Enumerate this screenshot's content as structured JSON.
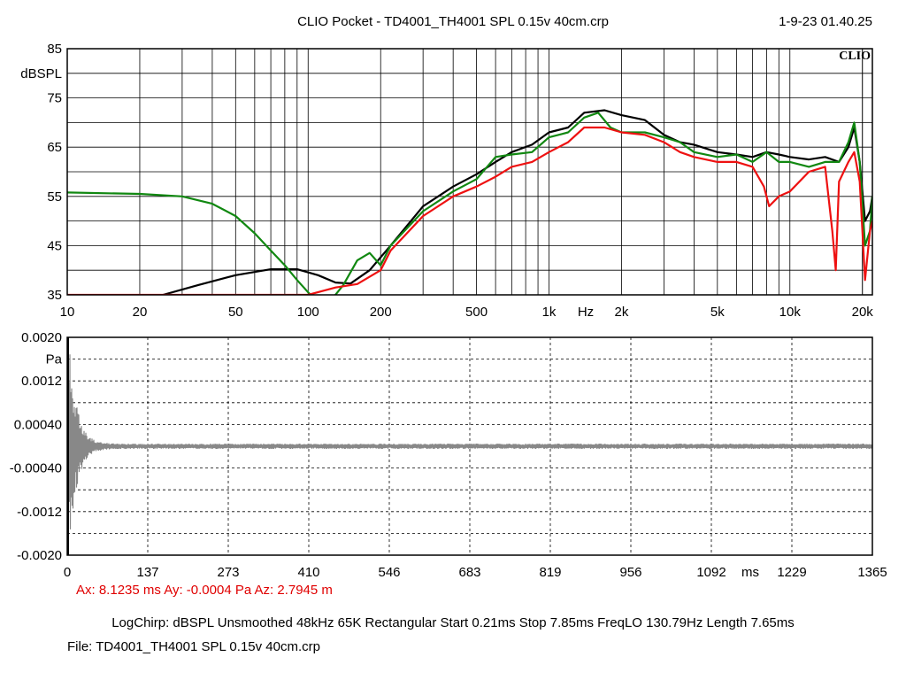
{
  "title": "CLIO Pocket - TD4001_TH4001 SPL 0.15v 40cm.crp",
  "datetime": "1-9-23 01.40.25",
  "brand": "CLIO",
  "cursor_readout": "Ax: 8.1235 ms   Ay: -0.0004 Pa   Az: 2.7945 m",
  "params": "LogChirp:  dBSPL   Unsmoothed   48kHz   65K   Rectangular   Start 0.21ms    Stop 7.85ms    FreqLO 130.79Hz    Length 7.65ms",
  "file": "File: TD4001_TH4001 SPL 0.15v 40cm.crp",
  "colors": {
    "black": "#000000",
    "green": "#118811",
    "red": "#ee1111",
    "impulse": "#888888"
  },
  "chart_data": [
    {
      "type": "line",
      "x_scale": "log",
      "xlim": [
        10,
        22000
      ],
      "ylim": [
        35,
        85
      ],
      "ylabel": "dBSPL",
      "xlabel": "Hz",
      "y_ticks": [
        "85",
        "75",
        "65",
        "55",
        "45",
        "35"
      ],
      "x_ticks": [
        {
          "v": 10,
          "label": "10"
        },
        {
          "v": 20,
          "label": "20"
        },
        {
          "v": 50,
          "label": "50"
        },
        {
          "v": 100,
          "label": "100"
        },
        {
          "v": 200,
          "label": "200"
        },
        {
          "v": 500,
          "label": "500"
        },
        {
          "v": 1000,
          "label": "1k"
        },
        {
          "v": 2000,
          "label": "2k"
        },
        {
          "v": 5000,
          "label": "5k"
        },
        {
          "v": 10000,
          "label": "10k"
        },
        {
          "v": 20000,
          "label": "20k"
        }
      ],
      "series": [
        {
          "color": "black",
          "points": [
            [
              25,
              35
            ],
            [
              35,
              37
            ],
            [
              50,
              39
            ],
            [
              70,
              40.2
            ],
            [
              90,
              40.2
            ],
            [
              110,
              39
            ],
            [
              130,
              37.5
            ],
            [
              150,
              37.3
            ],
            [
              180,
              40
            ],
            [
              220,
              45
            ],
            [
              300,
              53
            ],
            [
              400,
              57
            ],
            [
              500,
              59.5
            ],
            [
              600,
              62
            ],
            [
              700,
              64
            ],
            [
              850,
              65.5
            ],
            [
              1000,
              68
            ],
            [
              1200,
              69
            ],
            [
              1400,
              72
            ],
            [
              1700,
              72.5
            ],
            [
              2000,
              71.5
            ],
            [
              2500,
              70.5
            ],
            [
              3000,
              67.5
            ],
            [
              3500,
              66
            ],
            [
              4000,
              65.5
            ],
            [
              5000,
              64
            ],
            [
              6000,
              63.5
            ],
            [
              7000,
              63
            ],
            [
              8000,
              64
            ],
            [
              9000,
              63.5
            ],
            [
              10000,
              63
            ],
            [
              12000,
              62.5
            ],
            [
              14000,
              63
            ],
            [
              16000,
              62
            ],
            [
              17500,
              65
            ],
            [
              18500,
              69
            ],
            [
              19500,
              62
            ],
            [
              20500,
              50
            ],
            [
              21500,
              52
            ],
            [
              22000,
              55
            ]
          ]
        },
        {
          "color": "green",
          "points": [
            [
              10,
              55.8
            ],
            [
              20,
              55.5
            ],
            [
              30,
              55
            ],
            [
              40,
              53.5
            ],
            [
              50,
              51
            ],
            [
              60,
              47.5
            ],
            [
              70,
              44
            ],
            [
              80,
              41
            ],
            [
              90,
              38
            ],
            [
              100,
              35.5
            ],
            [
              105,
              34.5
            ],
            [
              125,
              34
            ],
            [
              140,
              37
            ],
            [
              160,
              42
            ],
            [
              180,
              43.5
            ],
            [
              200,
              41
            ],
            [
              220,
              45
            ],
            [
              300,
              52
            ],
            [
              400,
              56
            ],
            [
              500,
              58.5
            ],
            [
              600,
              63
            ],
            [
              700,
              63.5
            ],
            [
              850,
              64
            ],
            [
              1000,
              67
            ],
            [
              1200,
              68
            ],
            [
              1400,
              71
            ],
            [
              1600,
              72
            ],
            [
              1800,
              69
            ],
            [
              2000,
              68
            ],
            [
              2500,
              68
            ],
            [
              3000,
              67
            ],
            [
              3500,
              66
            ],
            [
              4000,
              64
            ],
            [
              5000,
              63
            ],
            [
              6000,
              63.5
            ],
            [
              7000,
              62
            ],
            [
              8000,
              64
            ],
            [
              9000,
              62
            ],
            [
              10000,
              62
            ],
            [
              12000,
              61
            ],
            [
              14000,
              62
            ],
            [
              16000,
              62
            ],
            [
              17500,
              66
            ],
            [
              18500,
              70
            ],
            [
              19500,
              62
            ],
            [
              20500,
              45
            ],
            [
              21500,
              48
            ],
            [
              22000,
              55
            ]
          ]
        },
        {
          "color": "red",
          "points": [
            [
              10,
              35
            ],
            [
              100,
              35
            ],
            [
              130,
              36.5
            ],
            [
              160,
              37.2
            ],
            [
              200,
              40
            ],
            [
              220,
              44
            ],
            [
              300,
              51
            ],
            [
              400,
              55
            ],
            [
              500,
              57
            ],
            [
              600,
              59
            ],
            [
              700,
              61
            ],
            [
              850,
              62
            ],
            [
              1000,
              64
            ],
            [
              1200,
              66
            ],
            [
              1400,
              69
            ],
            [
              1700,
              69
            ],
            [
              2000,
              68
            ],
            [
              2500,
              67.5
            ],
            [
              3000,
              66
            ],
            [
              3500,
              64
            ],
            [
              4000,
              63
            ],
            [
              5000,
              62
            ],
            [
              6000,
              62
            ],
            [
              7000,
              61
            ],
            [
              7800,
              57
            ],
            [
              8200,
              53
            ],
            [
              9000,
              55
            ],
            [
              10000,
              56
            ],
            [
              12000,
              60
            ],
            [
              14000,
              61
            ],
            [
              15000,
              48
            ],
            [
              15500,
              40
            ],
            [
              16000,
              58
            ],
            [
              17500,
              62
            ],
            [
              18500,
              64
            ],
            [
              19500,
              58
            ],
            [
              20500,
              38
            ],
            [
              21500,
              48
            ],
            [
              22000,
              50
            ]
          ]
        }
      ]
    },
    {
      "type": "line",
      "xlim": [
        0,
        1365
      ],
      "ylim": [
        -0.002,
        0.002
      ],
      "ylabel": "Pa",
      "xlabel": "ms",
      "y_ticks": [
        {
          "v": 0.002,
          "label": "0.0020"
        },
        {
          "v": 0.0012,
          "label": "0.0012"
        },
        {
          "v": 0.0004,
          "label": "0.00040"
        },
        {
          "v": -0.0004,
          "label": "-0.00040"
        },
        {
          "v": -0.0012,
          "label": "-0.0012"
        },
        {
          "v": -0.002,
          "label": "-0.0020"
        }
      ],
      "x_ticks": [
        "0",
        "137",
        "273",
        "410",
        "546",
        "683",
        "819",
        "956",
        "1092",
        "1229",
        "1365"
      ],
      "series": [
        {
          "color": "impulse",
          "points": [
            [
              0,
              0
            ],
            [
              1,
              0.002
            ],
            [
              2,
              -0.002
            ],
            [
              4,
              0.0018
            ],
            [
              6,
              -0.0016
            ],
            [
              8,
              0.0012
            ],
            [
              10,
              -0.0012
            ],
            [
              14,
              0.0008
            ],
            [
              18,
              -0.0009
            ],
            [
              24,
              0.0005
            ],
            [
              30,
              -0.0005
            ],
            [
              40,
              0.0002
            ],
            [
              60,
              0.0001
            ],
            [
              100,
              5e-05
            ],
            [
              1365,
              0
            ]
          ]
        }
      ]
    }
  ]
}
